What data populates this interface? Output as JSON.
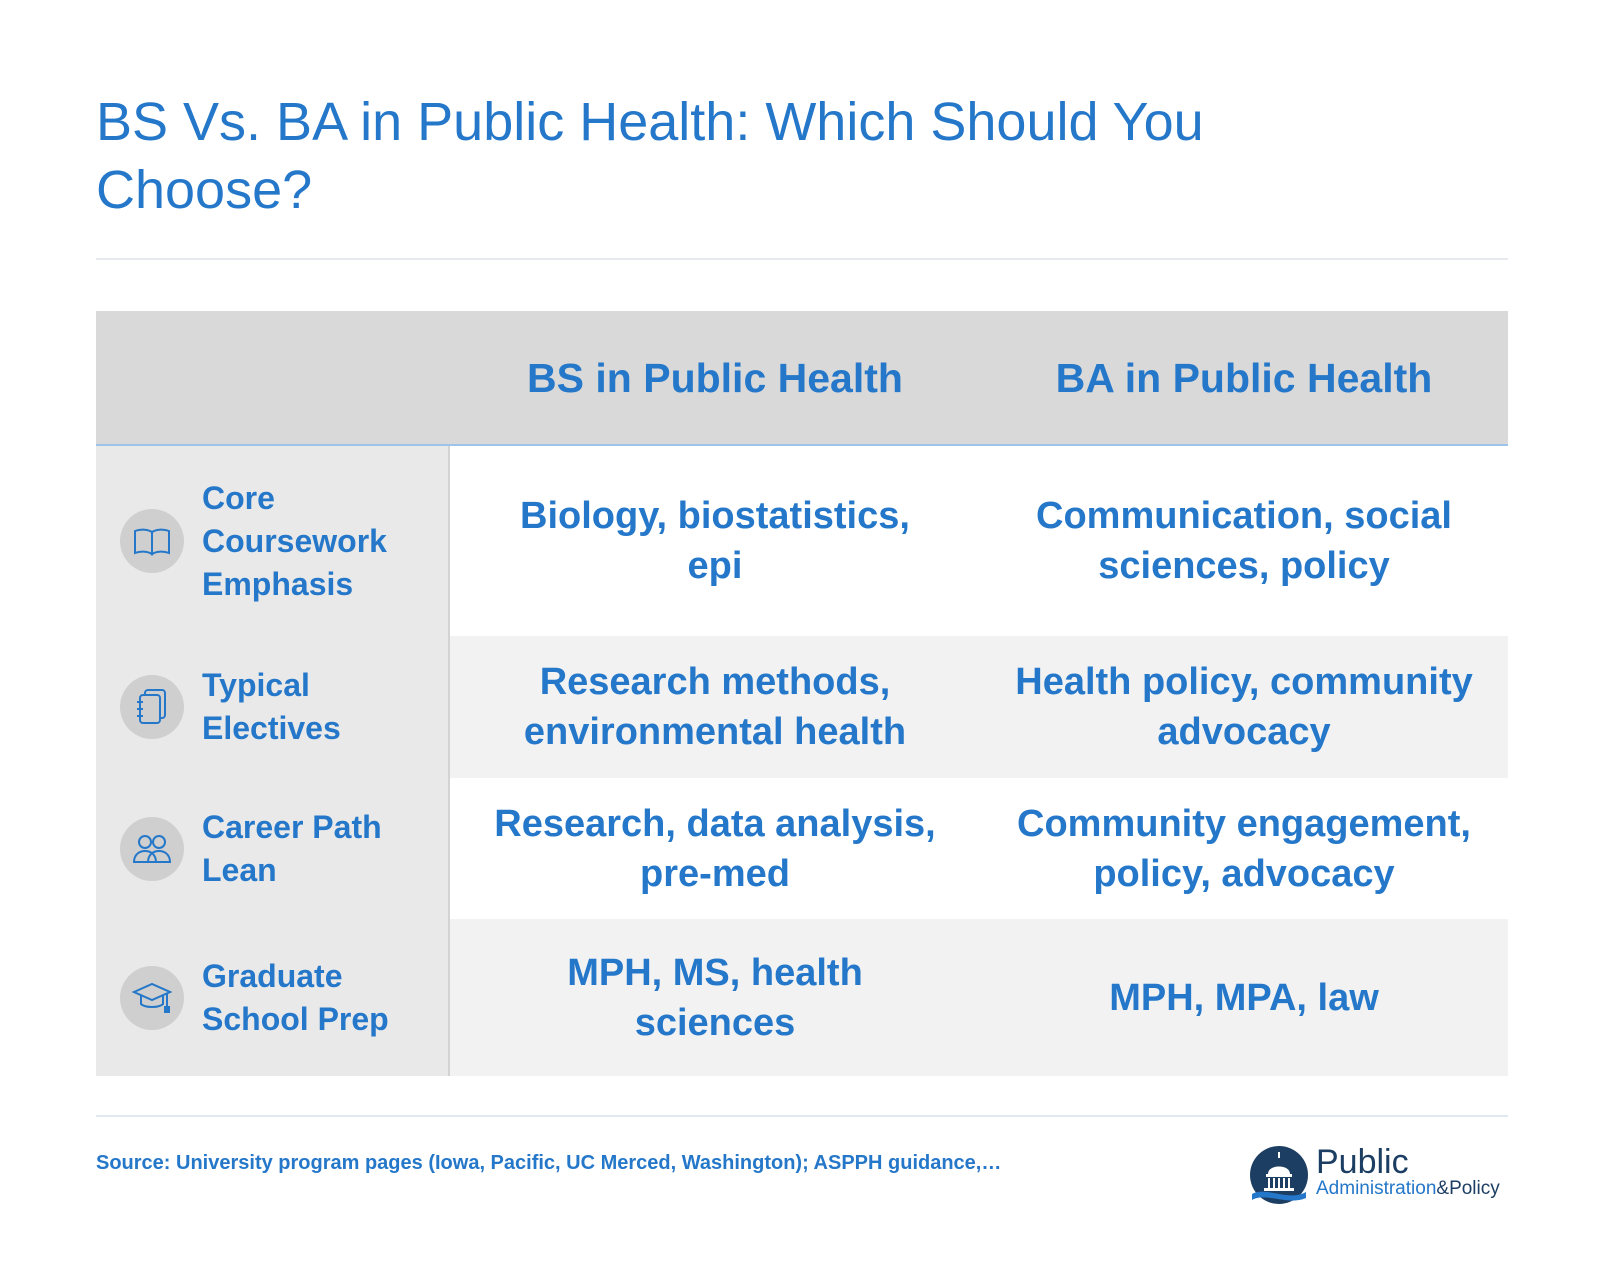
{
  "title": "BS Vs. BA in Public Health: Which Should You Choose?",
  "table": {
    "columns": {
      "bs": "BS in Public Health",
      "ba": "BA in Public Health"
    },
    "rows": [
      {
        "label": "Core Coursework Emphasis",
        "icon": "book-icon",
        "bs": "Biology, biostatistics, epi",
        "ba": "Communication, social sciences, policy"
      },
      {
        "label": "Typical Electives",
        "icon": "notebook-icon",
        "bs": "Research methods, environmental health",
        "ba": "Health policy, community advocacy"
      },
      {
        "label": "Career Path Lean",
        "icon": "people-icon",
        "bs": "Research, data analysis, pre-med",
        "ba": "Community engagement, policy, advocacy"
      },
      {
        "label": "Graduate School Prep",
        "icon": "graduation-cap-icon",
        "bs": "MPH, MS, health sciences",
        "ba": "MPH, MPA, law"
      }
    ]
  },
  "source": "Source: University program pages (Iowa, Pacific, UC Merced, Washington); ASPPH guidance,…",
  "logo": {
    "word1": "Public",
    "word2": "Administration",
    "amp": "&Policy",
    "icon": "capitol-dome-icon"
  },
  "colors": {
    "accent": "#2477c9",
    "header_bg": "#d9d9d9",
    "sidebar_bg": "#e9e9e9",
    "band_gray": "#f2f2f2",
    "logo_dark": "#1d3e63"
  }
}
